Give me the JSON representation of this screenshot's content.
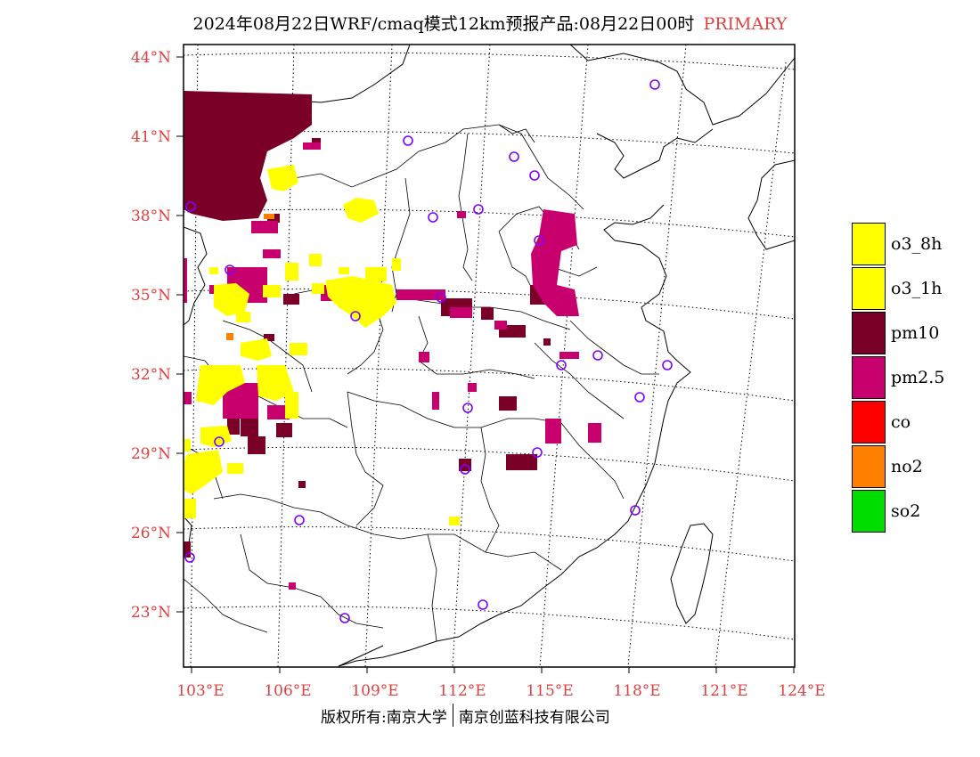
{
  "title": {
    "main": "2024年08月22日WRF/cmaq模式12km预报产品:08月22日00时",
    "tag": "PRIMARY"
  },
  "axes": {
    "lat_ticks": [
      "44°N",
      "41°N",
      "38°N",
      "35°N",
      "32°N",
      "29°N",
      "26°N",
      "23°N"
    ],
    "lon_ticks": [
      "103°E",
      "106°E",
      "109°E",
      "112°E",
      "115°E",
      "118°E",
      "121°E",
      "124°E"
    ]
  },
  "legend": [
    {
      "label": "o3_8h",
      "color": "#ffff00"
    },
    {
      "label": "o3_1h",
      "color": "#ffff00"
    },
    {
      "label": "pm10",
      "color": "#7a0028"
    },
    {
      "label": "pm2.5",
      "color": "#c8006e"
    },
    {
      "label": "co",
      "color": "#ff0000"
    },
    {
      "label": "no2",
      "color": "#ff7f00"
    },
    {
      "label": "so2",
      "color": "#00dd00"
    }
  ],
  "footer": {
    "left": "版权所有:南京大学",
    "right": "南京创蓝科技有限公司"
  }
}
